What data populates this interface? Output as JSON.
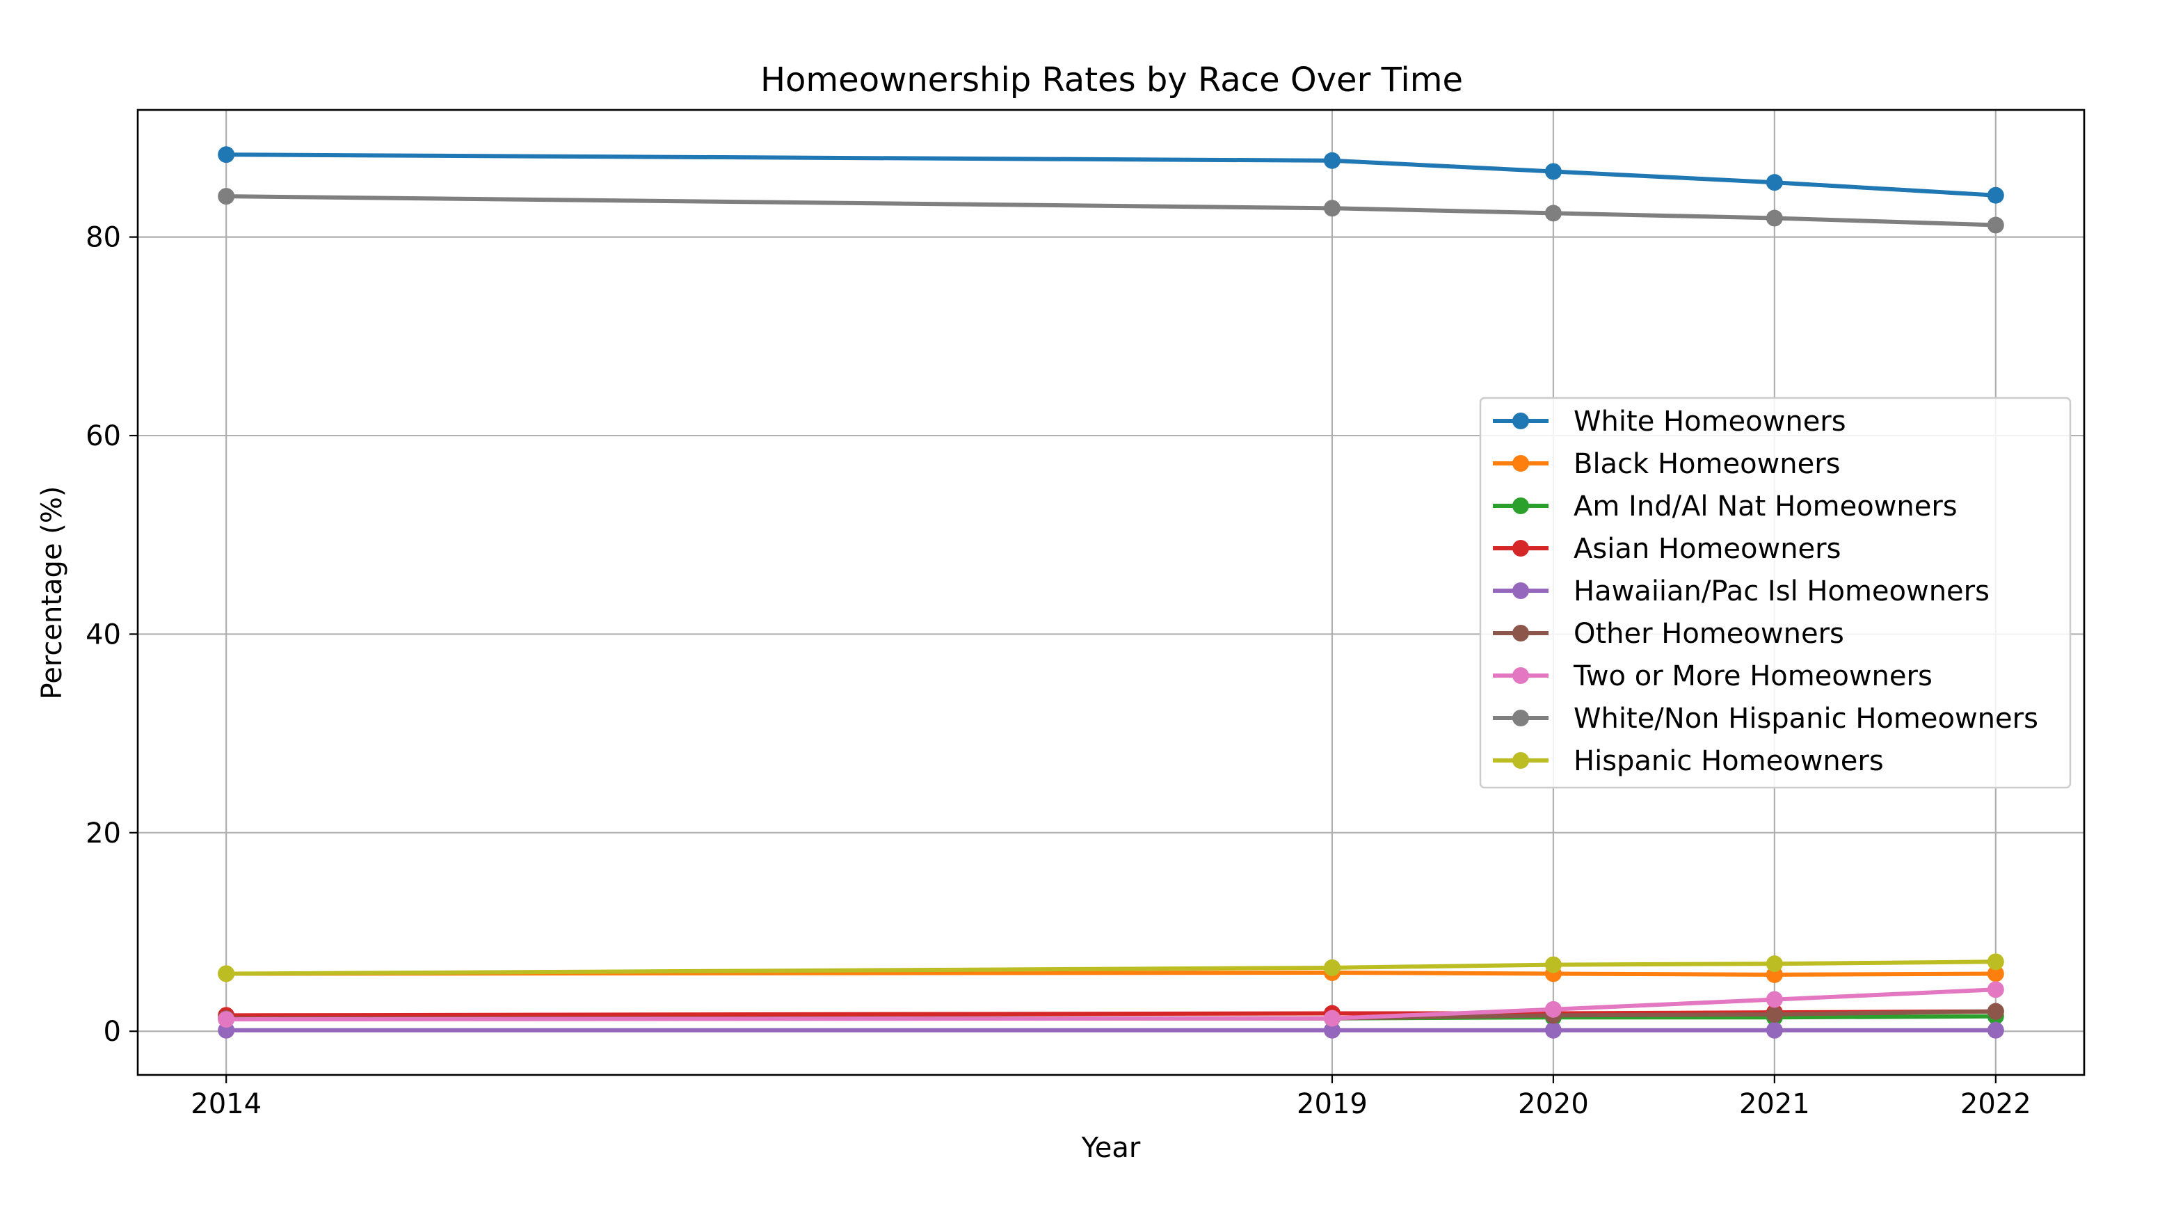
{
  "chart_data": {
    "type": "line",
    "title": "Homeownership Rates by Race Over Time",
    "xlabel": "Year",
    "ylabel": "Percentage (%)",
    "x": [
      2014,
      2019,
      2020,
      2021,
      2022
    ],
    "xlim": [
      2013.6,
      2022.4
    ],
    "ylim": [
      -4.4,
      92.8
    ],
    "yticks": [
      0,
      20,
      40,
      60,
      80
    ],
    "grid": true,
    "legend_position": "center-right",
    "series": [
      {
        "name": "White Homeowners",
        "color": "#1f77b4",
        "values": [
          88.3,
          87.7,
          86.6,
          85.5,
          84.2
        ]
      },
      {
        "name": "Black Homeowners",
        "color": "#ff7f0e",
        "values": [
          5.8,
          5.9,
          5.8,
          5.7,
          5.8
        ]
      },
      {
        "name": "Am Ind/Al Nat Homeowners",
        "color": "#2ca02c",
        "values": [
          1.3,
          1.3,
          1.4,
          1.4,
          1.5
        ]
      },
      {
        "name": "Asian Homeowners",
        "color": "#d62728",
        "values": [
          1.6,
          1.8,
          1.8,
          1.9,
          2.0
        ]
      },
      {
        "name": "Hawaiian/Pac Isl Homeowners",
        "color": "#9467bd",
        "values": [
          0.1,
          0.1,
          0.1,
          0.1,
          0.1
        ]
      },
      {
        "name": "Other Homeowners",
        "color": "#8c564b",
        "values": [
          1.3,
          1.3,
          1.6,
          1.7,
          2.0
        ]
      },
      {
        "name": "Two or More Homeowners",
        "color": "#e377c2",
        "values": [
          1.2,
          1.3,
          2.2,
          3.2,
          4.2
        ]
      },
      {
        "name": "White/Non Hispanic Homeowners",
        "color": "#7f7f7f",
        "values": [
          84.1,
          82.9,
          82.4,
          81.9,
          81.2
        ]
      },
      {
        "name": "Hispanic Homeowners",
        "color": "#bcbd22",
        "values": [
          5.8,
          6.4,
          6.7,
          6.8,
          7.0
        ]
      }
    ]
  }
}
